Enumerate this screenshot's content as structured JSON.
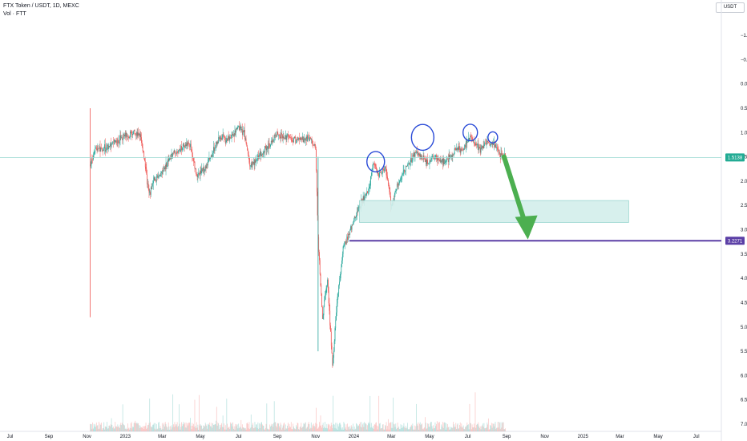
{
  "header": {
    "title": "FTX Token / USDT, 1D, MEXC",
    "volume_label": "Vol · FTT",
    "currency": "USDT"
  },
  "chart_data": {
    "type": "candlestick",
    "symbol": "FTX Token / USDT",
    "interval": "1D",
    "exchange": "MEXC",
    "y_axis": {
      "scale": "inverted",
      "range": [
        -1.4,
        7.1
      ],
      "ticks": [
        "-1.0000",
        "-0.5000",
        "0.0000",
        "0.5000",
        "1.0000",
        "1.5000",
        "2.0000",
        "2.5000",
        "3.0000",
        "3.5000",
        "4.0000",
        "4.5000",
        "5.0000",
        "5.5000",
        "6.0000",
        "6.5000",
        "7.0000"
      ]
    },
    "x_axis": {
      "ticks": [
        "Jul",
        "Sep",
        "Nov",
        "2023",
        "Mar",
        "May",
        "Jul",
        "Sep",
        "Nov",
        "2024",
        "Mar",
        "May",
        "Jul",
        "Sep",
        "Nov",
        "2025",
        "Mar",
        "May",
        "Jul"
      ]
    },
    "price_series": [
      [
        "2022-11-01",
        4.8
      ],
      [
        "2022-11-05",
        1.7
      ],
      [
        "2022-11-15",
        1.35
      ],
      [
        "2022-12-01",
        1.3
      ],
      [
        "2022-12-15",
        1.2
      ],
      [
        "2023-01-01",
        1.05
      ],
      [
        "2023-01-15",
        1.0
      ],
      [
        "2023-01-25",
        1.05
      ],
      [
        "2023-02-01",
        1.6
      ],
      [
        "2023-02-08",
        2.3
      ],
      [
        "2023-02-15",
        2.0
      ],
      [
        "2023-03-01",
        1.8
      ],
      [
        "2023-03-15",
        1.5
      ],
      [
        "2023-04-01",
        1.3
      ],
      [
        "2023-04-15",
        1.25
      ],
      [
        "2023-04-25",
        1.9
      ],
      [
        "2023-05-10",
        1.7
      ],
      [
        "2023-06-01",
        1.1
      ],
      [
        "2023-06-15",
        1.15
      ],
      [
        "2023-07-01",
        0.9
      ],
      [
        "2023-07-10",
        1.0
      ],
      [
        "2023-07-20",
        1.7
      ],
      [
        "2023-08-01",
        1.5
      ],
      [
        "2023-08-15",
        1.3
      ],
      [
        "2023-09-01",
        1.05
      ],
      [
        "2023-09-15",
        1.1
      ],
      [
        "2023-10-01",
        1.15
      ],
      [
        "2023-10-20",
        1.1
      ],
      [
        "2023-11-01",
        1.3
      ],
      [
        "2023-11-05",
        3.2
      ],
      [
        "2023-11-12",
        4.8
      ],
      [
        "2023-11-20",
        4.0
      ],
      [
        "2023-11-28",
        5.8
      ],
      [
        "2023-12-05",
        4.5
      ],
      [
        "2023-12-15",
        3.4
      ],
      [
        "2024-01-01",
        2.8
      ],
      [
        "2024-01-15",
        2.4
      ],
      [
        "2024-01-25",
        2.2
      ],
      [
        "2024-02-01",
        1.6
      ],
      [
        "2024-02-10",
        1.9
      ],
      [
        "2024-02-20",
        1.7
      ],
      [
        "2024-03-01",
        2.5
      ],
      [
        "2024-03-10",
        2.1
      ],
      [
        "2024-03-25",
        1.7
      ],
      [
        "2024-04-10",
        1.4
      ],
      [
        "2024-04-25",
        1.6
      ],
      [
        "2024-05-10",
        1.5
      ],
      [
        "2024-05-25",
        1.6
      ],
      [
        "2024-06-10",
        1.4
      ],
      [
        "2024-06-25",
        1.3
      ],
      [
        "2024-07-05",
        1.1
      ],
      [
        "2024-07-20",
        1.35
      ],
      [
        "2024-08-01",
        1.2
      ],
      [
        "2024-08-15",
        1.3
      ],
      [
        "2024-08-25",
        1.5
      ]
    ],
    "volume_ticks_note": "",
    "current_price": "1.5138",
    "support_level": "3.2271",
    "zone": {
      "from": "2024-01-10",
      "to": "2025-03-15",
      "top": 2.4,
      "bottom": 2.85
    },
    "support_line_start": "2023-12-25",
    "arrow": {
      "from_date": "2024-08-28",
      "from_price": 1.5,
      "to_date": "2024-10-05",
      "to_price": 3.2
    },
    "circles": [
      {
        "date": "2024-02-05",
        "price": 1.6
      },
      {
        "date": "2024-04-20",
        "price": 1.1
      },
      {
        "date": "2024-07-05",
        "price": 1.0
      },
      {
        "date": "2024-08-10",
        "price": 1.1
      }
    ],
    "colors": {
      "up": "#26a69a",
      "down": "#ef5350",
      "zone": "#d3efec",
      "zone_border": "#8fd3cb",
      "support": "#5b3fa6",
      "arrow": "#4caf50",
      "circles": "#2a4bd7",
      "price_line": "#9ad9d2"
    }
  }
}
